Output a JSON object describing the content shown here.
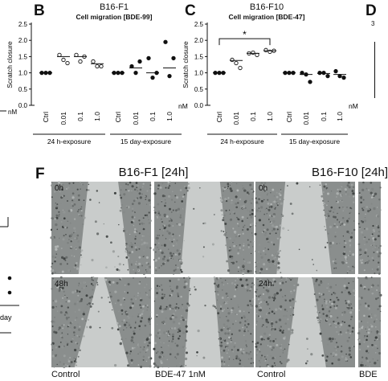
{
  "panels": {
    "b": {
      "letter": "B",
      "title": "B16-F1",
      "subtitle": "Cell migration [BDE-99]",
      "ylabel": "Scratch closure",
      "unit": "nM",
      "yticks": [
        "0.0",
        "0.5",
        "1.0",
        "1.5",
        "2.0",
        "2.5"
      ],
      "categories": [
        "Ctrl",
        "0.01",
        "0.1",
        "1.0",
        "Ctrl",
        "0.01",
        "0.1",
        "1.0"
      ],
      "groups": [
        "24 h-exposure",
        "15 day-exposure"
      ]
    },
    "c": {
      "letter": "C",
      "title": "B16-F10",
      "subtitle": "Cell migration [BDE-47]",
      "ylabel": "Scratch closure",
      "unit": "nM",
      "yticks": [
        "0.0",
        "0.5",
        "1.0",
        "1.5",
        "2.0",
        "2.5"
      ],
      "categories": [
        "Ctrl",
        "0.01",
        "0.1",
        "1.0",
        "Ctrl",
        "0.01",
        "0.1",
        "1.0"
      ],
      "groups": [
        "24 h-exposure",
        "15 day-exposure"
      ],
      "significance": "*"
    },
    "d": {
      "letter": "D",
      "ytick_partial": "3"
    },
    "f": {
      "letter": "F",
      "title_left": "B16-F1 [24h]",
      "title_right": "B16-F10 [24h]",
      "time_top": "0h",
      "time_bottom_left": "48h",
      "time_bottom_right": "24h",
      "caption_control_left": "Control",
      "caption_treat": "BDE-47 1nM",
      "caption_control_right": "Control",
      "caption_treat_partial": "BDE"
    },
    "left_fragment": {
      "unit": "nM",
      "label": "day"
    }
  },
  "chart_data": [
    {
      "type": "scatter",
      "title": "B16-F1",
      "subtitle": "Cell migration [BDE-99]",
      "ylabel": "Scratch closure",
      "xlabel": "nM",
      "ylim": [
        0,
        2.5
      ],
      "categories": [
        "Ctrl",
        "0.01",
        "0.1",
        "1.0",
        "Ctrl",
        "0.01",
        "0.1",
        "1.0"
      ],
      "series": [
        {
          "values": [
            [
              1.0,
              1.0,
              1.0
            ],
            [
              1.55,
              1.4,
              1.3
            ],
            [
              1.55,
              1.35,
              1.5
            ],
            [
              1.35,
              1.2,
              1.2
            ],
            [
              1.0,
              1.0,
              1.0
            ],
            [
              1.2,
              1.0,
              1.35
            ],
            [
              1.45,
              0.85,
              1.0
            ],
            [
              1.95,
              0.9,
              1.45
            ]
          ]
        }
      ],
      "means": [
        1.0,
        1.5,
        1.5,
        1.28,
        1.0,
        1.15,
        1.0,
        1.15
      ],
      "open_markers": [
        false,
        true,
        true,
        true,
        false,
        false,
        false,
        false
      ]
    },
    {
      "type": "scatter",
      "title": "B16-F10",
      "subtitle": "Cell migration [BDE-47]",
      "ylabel": "Scratch closure",
      "xlabel": "nM",
      "ylim": [
        0,
        2.5
      ],
      "categories": [
        "Ctrl",
        "0.01",
        "0.1",
        "1.0",
        "Ctrl",
        "0.01",
        "0.1",
        "1.0"
      ],
      "series": [
        {
          "values": [
            [
              1.0,
              1.0,
              1.0
            ],
            [
              1.4,
              1.3,
              1.15
            ],
            [
              1.6,
              1.62,
              1.55
            ],
            [
              1.7,
              1.65,
              1.68
            ],
            [
              1.0,
              1.0,
              1.0
            ],
            [
              1.0,
              0.95,
              0.72
            ],
            [
              1.0,
              1.0,
              0.9
            ],
            [
              1.05,
              0.9,
              0.85
            ]
          ]
        }
      ],
      "means": [
        1.0,
        1.38,
        1.6,
        1.68,
        1.0,
        0.95,
        0.98,
        0.95
      ],
      "open_markers": [
        false,
        true,
        true,
        true,
        false,
        false,
        false,
        false
      ],
      "significance": {
        "from": "Ctrl",
        "to": "1.0",
        "label": "*"
      }
    }
  ]
}
